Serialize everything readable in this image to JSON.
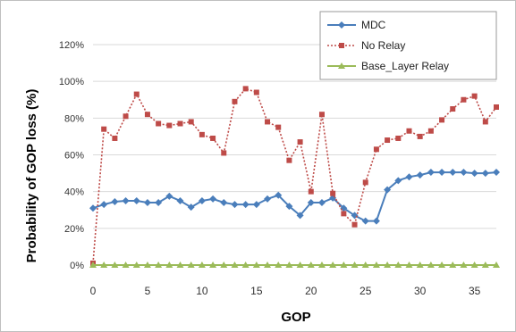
{
  "chart_data": {
    "type": "line",
    "xlabel": "GOP",
    "ylabel": "Probability of GOP loss (%)",
    "xlim": [
      0,
      37
    ],
    "ylim": [
      0,
      120
    ],
    "x_ticks": [
      0,
      5,
      10,
      15,
      20,
      25,
      30,
      35
    ],
    "y_ticks": [
      0,
      20,
      40,
      60,
      80,
      100,
      120
    ],
    "y_tick_labels": [
      "0%",
      "20%",
      "40%",
      "60%",
      "80%",
      "100%",
      "120%"
    ],
    "grid": "horizontal",
    "legend_position": "top-right",
    "x": [
      0,
      1,
      2,
      3,
      4,
      5,
      6,
      7,
      8,
      9,
      10,
      11,
      12,
      13,
      14,
      15,
      16,
      17,
      18,
      19,
      20,
      21,
      22,
      23,
      24,
      25,
      26,
      27,
      28,
      29,
      30,
      31,
      32,
      33,
      34,
      35,
      36,
      37
    ],
    "series": [
      {
        "name": "MDC",
        "color": "#4a7ebb",
        "marker": "diamond",
        "style": "solid",
        "values": [
          31,
          33,
          34.5,
          35,
          35,
          34,
          34,
          37.5,
          35,
          31.5,
          35,
          36,
          34,
          33,
          33,
          33,
          36,
          38,
          32,
          27,
          34,
          34,
          36.5,
          31,
          27,
          24,
          24,
          41,
          46,
          48,
          49,
          50.5,
          50.5,
          50.5,
          50.5,
          50,
          50,
          50.5
        ]
      },
      {
        "name": "No Relay",
        "color": "#be4b48",
        "marker": "square",
        "style": "dotted",
        "values": [
          1,
          74,
          69,
          81,
          93,
          82,
          77,
          76,
          77,
          78,
          71,
          69,
          61,
          89,
          96,
          94,
          78,
          75,
          57,
          67,
          40,
          82,
          39,
          28,
          22,
          45,
          63,
          68,
          69,
          73,
          70,
          73,
          79,
          85,
          90,
          92,
          78,
          86
        ]
      },
      {
        "name": "Base_Layer Relay",
        "color": "#9bbb59",
        "marker": "triangle",
        "style": "solid",
        "values": [
          0,
          0,
          0,
          0,
          0,
          0,
          0,
          0,
          0,
          0,
          0,
          0,
          0,
          0,
          0,
          0,
          0,
          0,
          0,
          0,
          0,
          0,
          0,
          0,
          0,
          0,
          0,
          0,
          0,
          0,
          0,
          0,
          0,
          0,
          0,
          0,
          0,
          0
        ]
      }
    ]
  }
}
